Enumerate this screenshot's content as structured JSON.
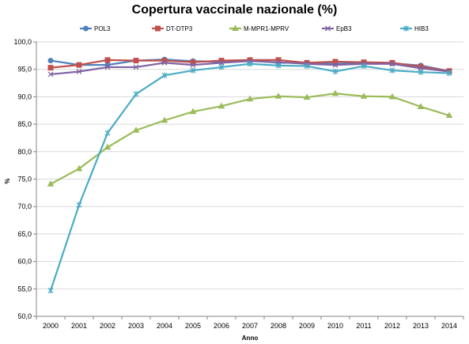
{
  "chart_data": {
    "type": "line",
    "title": "Copertura vaccinale nazionale (%)",
    "xlabel": "Anno",
    "ylabel": "%",
    "ylim": [
      50,
      100
    ],
    "ytick_step": 5,
    "ytick_labels": [
      "50,0",
      "55,0",
      "60,0",
      "65,0",
      "70,0",
      "75,0",
      "80,0",
      "85,0",
      "90,0",
      "95,0",
      "100,0"
    ],
    "grid": true,
    "legend_position": "top",
    "categories": [
      "2000",
      "2001",
      "2002",
      "2003",
      "2004",
      "2005",
      "2006",
      "2007",
      "2008",
      "2009",
      "2010",
      "2011",
      "2012",
      "2013",
      "2014"
    ],
    "series": [
      {
        "name": "POL3",
        "color": "#4F81BD",
        "marker": "circle",
        "values": [
          96.6,
          95.8,
          95.8,
          96.6,
          96.8,
          96.5,
          96.4,
          96.6,
          96.2,
          96.2,
          96.0,
          96.2,
          96.1,
          95.7,
          94.7
        ]
      },
      {
        "name": "DT-DTP3",
        "color": "#C0504D",
        "marker": "square",
        "values": [
          95.3,
          95.8,
          96.7,
          96.6,
          96.6,
          96.3,
          96.6,
          96.7,
          96.7,
          96.2,
          96.4,
          96.3,
          96.2,
          95.5,
          94.7
        ]
      },
      {
        "name": "M-MPR1-MPRV",
        "color": "#9BBB59",
        "marker": "triangle",
        "values": [
          74.1,
          76.9,
          80.8,
          83.9,
          85.7,
          87.3,
          88.3,
          89.6,
          90.1,
          89.9,
          90.6,
          90.1,
          90.0,
          88.2,
          86.6
        ]
      },
      {
        "name": "EpB3",
        "color": "#8064A2",
        "marker": "x",
        "values": [
          94.1,
          94.6,
          95.4,
          95.4,
          96.2,
          95.8,
          96.2,
          96.5,
          96.3,
          96.0,
          95.8,
          96.0,
          96.0,
          95.2,
          94.6
        ]
      },
      {
        "name": "HIB3",
        "color": "#4BACC6",
        "marker": "star",
        "values": [
          54.7,
          70.3,
          83.4,
          90.5,
          93.9,
          94.8,
          95.4,
          96.0,
          95.7,
          95.6,
          94.6,
          95.6,
          94.8,
          94.5,
          94.3
        ]
      }
    ]
  }
}
